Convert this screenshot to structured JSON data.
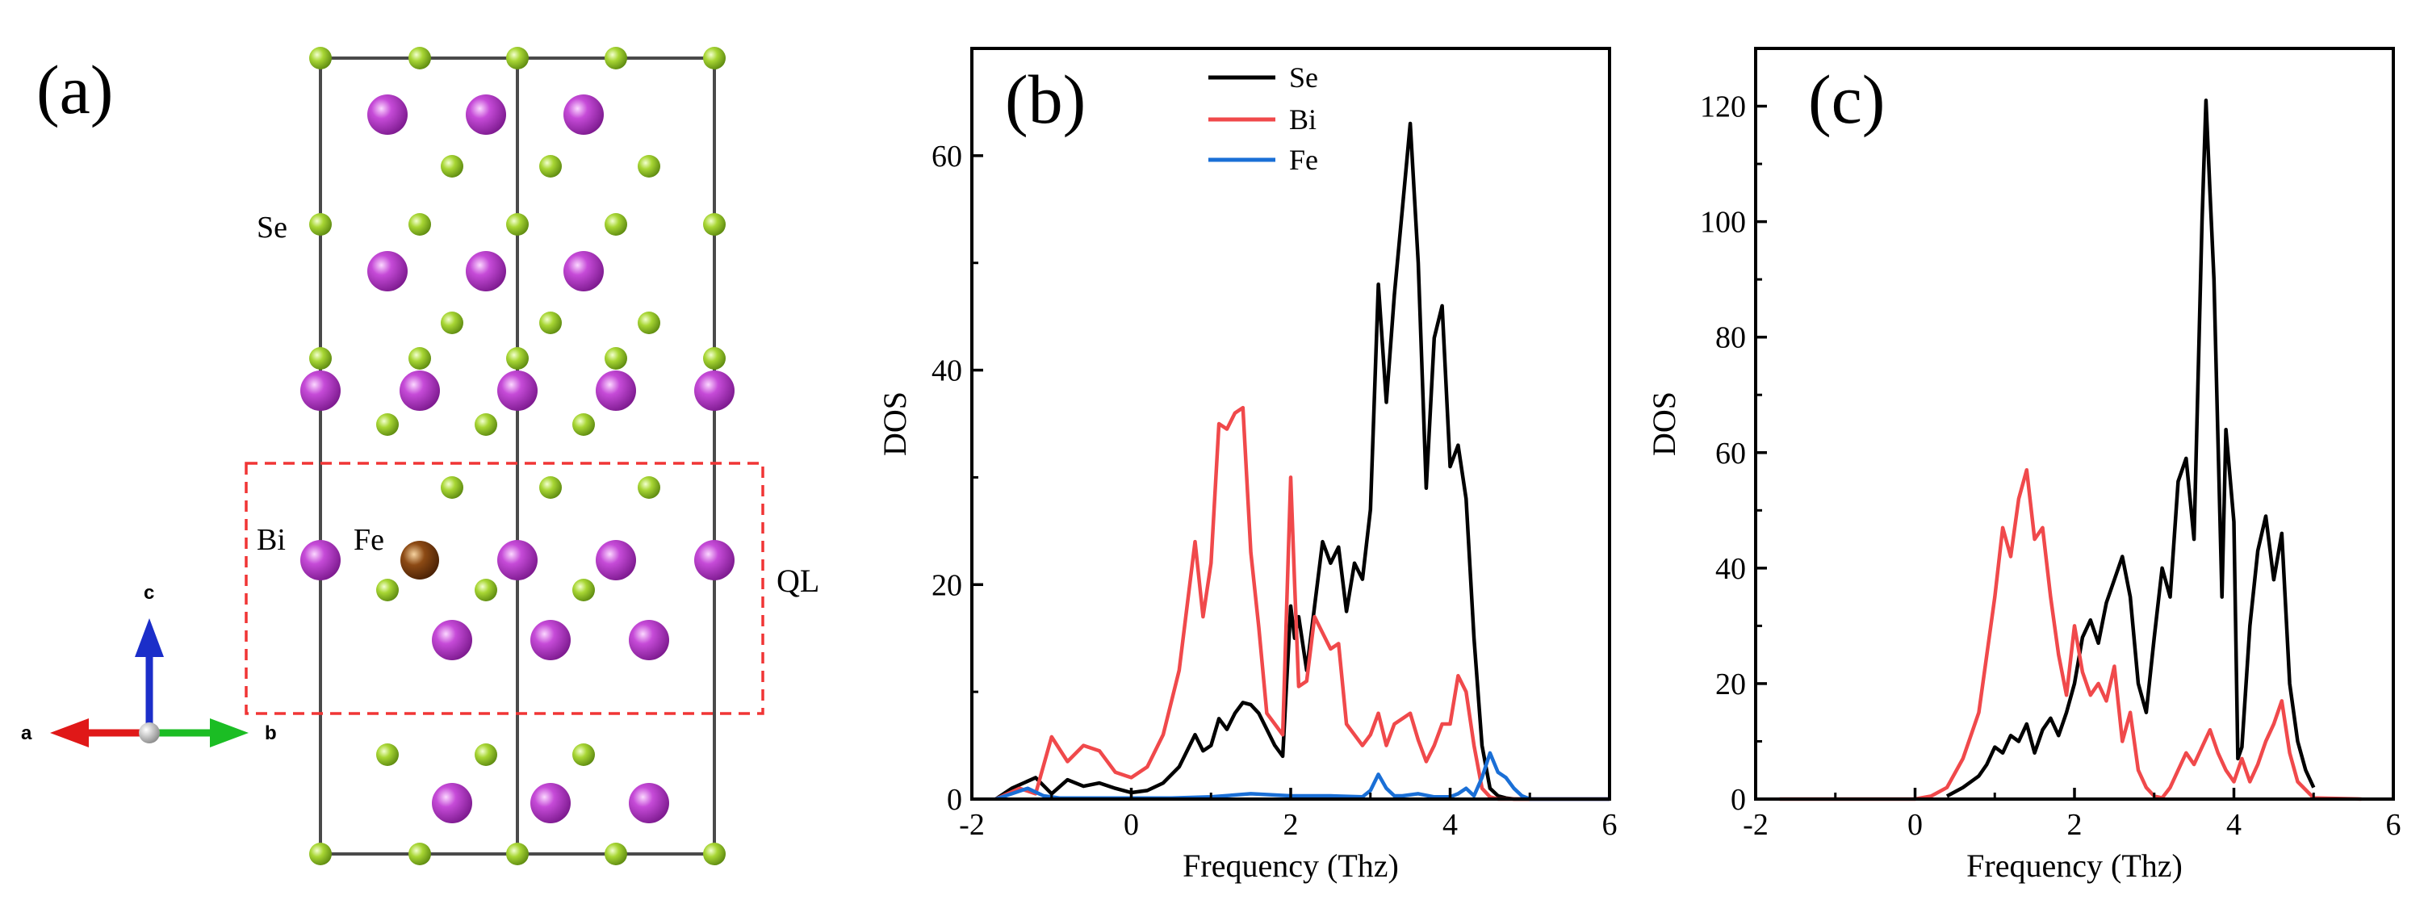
{
  "colors": {
    "se": "#8fc21f",
    "bi": "#b52fc9",
    "fe": "#7a4010",
    "line_se": "#000000",
    "line_bi": "#f0494b",
    "line_fe": "#1a6fd6",
    "box": "#f03535",
    "axis_a": "#e01818",
    "axis_b": "#1bbd24",
    "axis_c": "#1b2ec9"
  },
  "panel_a": {
    "label": "(a)",
    "atom_labels": {
      "se": "Se",
      "bi": "Bi",
      "fe": "Fe"
    },
    "ql_label": "QL",
    "axis_labels": {
      "a": "a",
      "b": "b",
      "c": "c"
    }
  },
  "chart_data": [
    {
      "type": "line",
      "panel": "(b)",
      "title": "",
      "xlabel": "Frequency (Thz)",
      "ylabel": "DOS",
      "xlim": [
        -2,
        6
      ],
      "ylim": [
        0,
        70
      ],
      "xticks": [
        -2,
        0,
        2,
        4,
        6
      ],
      "yticks": [
        0,
        20,
        40,
        60
      ],
      "legend": "top-center",
      "series": [
        {
          "name": "Se",
          "color": "#000000",
          "x": [
            -1.7,
            -1.5,
            -1.2,
            -1.0,
            -0.8,
            -0.6,
            -0.4,
            -0.2,
            0.0,
            0.2,
            0.4,
            0.6,
            0.8,
            0.9,
            1.0,
            1.1,
            1.2,
            1.3,
            1.4,
            1.5,
            1.6,
            1.7,
            1.8,
            1.9,
            2.0,
            2.05,
            2.1,
            2.2,
            2.3,
            2.4,
            2.5,
            2.6,
            2.7,
            2.8,
            2.9,
            3.0,
            3.1,
            3.2,
            3.3,
            3.4,
            3.5,
            3.6,
            3.7,
            3.8,
            3.9,
            4.0,
            4.1,
            4.2,
            4.3,
            4.4,
            4.5,
            4.6,
            4.7,
            4.8,
            4.9,
            5.0,
            5.1,
            5.2,
            5.4,
            6.0
          ],
          "y": [
            0,
            1,
            2,
            0.5,
            1.8,
            1.2,
            1.5,
            1.0,
            0.6,
            0.8,
            1.5,
            3.0,
            6.0,
            4.5,
            5.0,
            7.5,
            6.5,
            8.0,
            9.0,
            8.8,
            8.0,
            6.5,
            5.0,
            4.0,
            18.0,
            15.0,
            17.0,
            12.0,
            18.0,
            24.0,
            22.0,
            23.5,
            17.5,
            22.0,
            20.5,
            27.0,
            48.0,
            37.0,
            47.0,
            55.0,
            63.0,
            50.0,
            29.0,
            43.0,
            46.0,
            31.0,
            33.0,
            28.0,
            15.0,
            5.0,
            1.0,
            0.3,
            0.1,
            0.0,
            0.0,
            0.0,
            0.0,
            0.0,
            0.0,
            0.0
          ]
        },
        {
          "name": "Bi",
          "color": "#f0494b",
          "x": [
            -1.7,
            -1.4,
            -1.2,
            -1.0,
            -0.8,
            -0.6,
            -0.4,
            -0.2,
            0.0,
            0.2,
            0.4,
            0.6,
            0.8,
            0.9,
            1.0,
            1.1,
            1.2,
            1.3,
            1.4,
            1.5,
            1.6,
            1.7,
            1.8,
            1.9,
            2.0,
            2.05,
            2.1,
            2.2,
            2.3,
            2.4,
            2.5,
            2.6,
            2.7,
            2.8,
            2.9,
            3.0,
            3.1,
            3.2,
            3.3,
            3.4,
            3.5,
            3.6,
            3.7,
            3.8,
            3.9,
            4.0,
            4.1,
            4.2,
            4.3,
            4.4,
            4.5,
            4.6,
            4.7,
            4.8,
            4.9,
            5.0,
            5.1,
            5.2,
            5.4,
            6.0
          ],
          "y": [
            0,
            1,
            0.5,
            5.8,
            3.5,
            5.0,
            4.5,
            2.5,
            2.0,
            3.0,
            6.0,
            12.0,
            24.0,
            17.0,
            22.0,
            35.0,
            34.5,
            36.0,
            36.5,
            23.0,
            16.0,
            8.0,
            7.0,
            6.0,
            30.0,
            20.0,
            10.5,
            11.0,
            17.0,
            15.5,
            14.0,
            14.5,
            7.0,
            6.0,
            5.0,
            6.0,
            8.0,
            5.0,
            7.0,
            7.5,
            8.0,
            5.5,
            3.5,
            5.0,
            7.0,
            7.0,
            11.5,
            10.0,
            5.0,
            1.0,
            0.2,
            0.0,
            0.0,
            0.0,
            0.0,
            0.0,
            0.0,
            0.0,
            0.0,
            0.0
          ]
        },
        {
          "name": "Fe",
          "color": "#1a6fd6",
          "x": [
            -1.7,
            -1.5,
            -1.3,
            -1.1,
            -0.9,
            -0.5,
            0.0,
            0.5,
            1.0,
            1.5,
            2.0,
            2.5,
            2.9,
            3.0,
            3.1,
            3.2,
            3.3,
            3.4,
            3.6,
            3.8,
            4.0,
            4.1,
            4.2,
            4.3,
            4.4,
            4.5,
            4.6,
            4.7,
            4.8,
            4.9,
            5.0,
            5.2,
            6.0
          ],
          "y": [
            0,
            0.5,
            1.0,
            0.3,
            0.1,
            0.1,
            0.1,
            0.1,
            0.2,
            0.5,
            0.3,
            0.3,
            0.2,
            0.8,
            2.3,
            1.0,
            0.3,
            0.3,
            0.5,
            0.2,
            0.2,
            0.5,
            1.0,
            0.3,
            2.0,
            4.3,
            2.5,
            2.0,
            1.0,
            0.3,
            0.0,
            0.0,
            0.0
          ]
        }
      ]
    },
    {
      "type": "line",
      "panel": "(c)",
      "title": "",
      "xlabel": "Frequency (Thz)",
      "ylabel": "DOS",
      "xlim": [
        -2,
        6
      ],
      "ylim": [
        0,
        130
      ],
      "xticks": [
        -2,
        0,
        2,
        4,
        6
      ],
      "yticks": [
        0,
        20,
        40,
        60,
        80,
        100,
        120
      ],
      "legend": "none",
      "series": [
        {
          "name": "Se",
          "color": "#000000",
          "x": [
            0.4,
            0.6,
            0.8,
            0.9,
            1.0,
            1.1,
            1.2,
            1.3,
            1.4,
            1.5,
            1.6,
            1.7,
            1.8,
            1.9,
            2.0,
            2.1,
            2.2,
            2.3,
            2.4,
            2.5,
            2.6,
            2.7,
            2.8,
            2.9,
            3.0,
            3.1,
            3.2,
            3.3,
            3.4,
            3.5,
            3.6,
            3.65,
            3.7,
            3.75,
            3.8,
            3.85,
            3.9,
            4.0,
            4.05,
            4.1,
            4.2,
            4.3,
            4.4,
            4.5,
            4.6,
            4.7,
            4.8,
            4.9,
            5.0
          ],
          "y": [
            0.5,
            2.0,
            4.0,
            6.0,
            9.0,
            8.0,
            11.0,
            10.0,
            13.0,
            8.0,
            12.0,
            14.0,
            11.0,
            15.0,
            20.0,
            28.0,
            31.0,
            27.0,
            34.0,
            38.0,
            42.0,
            35.0,
            20.0,
            15.0,
            28.0,
            40.0,
            35.0,
            55.0,
            59.0,
            45.0,
            100.0,
            121.0,
            105.0,
            90.0,
            62.0,
            35.0,
            64.0,
            48.0,
            7.0,
            9.0,
            30.0,
            43.0,
            49.0,
            38.0,
            46.0,
            20.0,
            10.0,
            5.0,
            2.0
          ]
        },
        {
          "name": "Bi",
          "color": "#f0494b",
          "x": [
            -1.7,
            -0.4,
            0.0,
            0.2,
            0.4,
            0.6,
            0.8,
            0.9,
            1.0,
            1.1,
            1.2,
            1.3,
            1.4,
            1.5,
            1.6,
            1.7,
            1.8,
            1.9,
            2.0,
            2.1,
            2.2,
            2.3,
            2.4,
            2.5,
            2.6,
            2.7,
            2.8,
            2.9,
            3.0,
            3.1,
            3.2,
            3.3,
            3.4,
            3.5,
            3.6,
            3.7,
            3.8,
            3.9,
            4.0,
            4.1,
            4.2,
            4.3,
            4.4,
            4.5,
            4.6,
            4.7,
            4.8,
            5.0,
            5.6
          ],
          "y": [
            0,
            0,
            0,
            0.5,
            2.0,
            7.0,
            15.0,
            25.0,
            35.0,
            47.0,
            42.0,
            52.0,
            57.0,
            45.0,
            47.0,
            35.0,
            25.0,
            18.0,
            30.0,
            22.0,
            18.0,
            20.0,
            17.0,
            23.0,
            10.0,
            15.0,
            5.0,
            2.0,
            0.5,
            0.2,
            2.0,
            5.0,
            8.0,
            6.0,
            9.0,
            12.0,
            8.0,
            5.0,
            3.0,
            7.0,
            3.0,
            6.0,
            10.0,
            13.0,
            17.0,
            8.0,
            3.0,
            0.2,
            0.0
          ]
        }
      ]
    }
  ]
}
